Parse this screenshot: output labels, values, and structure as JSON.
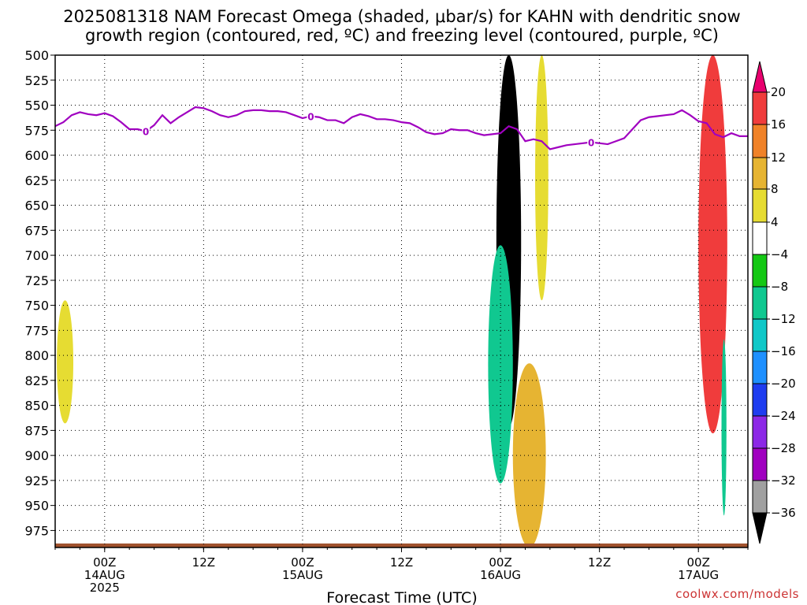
{
  "title": {
    "line1": "2025081318 NAM Forecast Omega (shaded, μbar/s) for KAHN with dendritic snow",
    "line2": "growth region (contoured, red, ºC) and freezing level (contoured, purple, ºC)"
  },
  "credit": "coolwx.com/models",
  "chart_data": {
    "type": "heatmap",
    "xlabel": "Forecast Time (UTC)",
    "ylabel": "",
    "x_range_hours": [
      0,
      84
    ],
    "y_range_hpa": [
      500,
      992
    ],
    "y_ticks": [
      500,
      525,
      550,
      575,
      600,
      625,
      650,
      675,
      700,
      725,
      750,
      775,
      800,
      825,
      850,
      875,
      900,
      925,
      950,
      975
    ],
    "x_ticks": [
      {
        "hour": 6,
        "l1": "00Z",
        "l2": "14AUG",
        "l3": "2025"
      },
      {
        "hour": 18,
        "l1": "12Z",
        "l2": "",
        "l3": ""
      },
      {
        "hour": 30,
        "l1": "00Z",
        "l2": "15AUG",
        "l3": ""
      },
      {
        "hour": 42,
        "l1": "12Z",
        "l2": "",
        "l3": ""
      },
      {
        "hour": 54,
        "l1": "00Z",
        "l2": "16AUG",
        "l3": ""
      },
      {
        "hour": 66,
        "l1": "12Z",
        "l2": "",
        "l3": ""
      },
      {
        "hour": 78,
        "l1": "00Z",
        "l2": "17AUG",
        "l3": ""
      }
    ],
    "grid": true,
    "colorbar": {
      "labels": [
        "20",
        "16",
        "12",
        "8",
        "4",
        "−4",
        "−8",
        "−12",
        "−16",
        "−20",
        "−24",
        "−28",
        "−32",
        "−36"
      ],
      "colors": [
        "#e8006e",
        "#f03c3c",
        "#f08228",
        "#e6b432",
        "#e6dc32",
        "#ffffff",
        "#14c814",
        "#10c890",
        "#10c8c8",
        "#1e90ff",
        "#1e3cf0",
        "#8c28e6",
        "#a000c0",
        "#a0a0a0",
        "#000000"
      ]
    },
    "freezing_level": {
      "label": "0",
      "color": "#a000c0",
      "points": [
        [
          0,
          571
        ],
        [
          1,
          567
        ],
        [
          2,
          560
        ],
        [
          3,
          557
        ],
        [
          4,
          559
        ],
        [
          5,
          560
        ],
        [
          6,
          558
        ],
        [
          7,
          561
        ],
        [
          8,
          567
        ],
        [
          9,
          574
        ],
        [
          10,
          574
        ],
        [
          11,
          576
        ],
        [
          12,
          570
        ],
        [
          13,
          560
        ],
        [
          14,
          568
        ],
        [
          15,
          562
        ],
        [
          16,
          557
        ],
        [
          17,
          552
        ],
        [
          18,
          553
        ],
        [
          19,
          556
        ],
        [
          20,
          560
        ],
        [
          21,
          562
        ],
        [
          22,
          560
        ],
        [
          23,
          556
        ],
        [
          24,
          555
        ],
        [
          25,
          555
        ],
        [
          26,
          556
        ],
        [
          27,
          556
        ],
        [
          28,
          557
        ],
        [
          29,
          560
        ],
        [
          30,
          563
        ],
        [
          31,
          561
        ],
        [
          32,
          562
        ],
        [
          33,
          565
        ],
        [
          34,
          565
        ],
        [
          35,
          568
        ],
        [
          36,
          562
        ],
        [
          37,
          559
        ],
        [
          38,
          561
        ],
        [
          39,
          564
        ],
        [
          40,
          564
        ],
        [
          41,
          565
        ],
        [
          42,
          567
        ],
        [
          43,
          568
        ],
        [
          44,
          572
        ],
        [
          45,
          577
        ],
        [
          46,
          579
        ],
        [
          47,
          578
        ],
        [
          48,
          574
        ],
        [
          49,
          575
        ],
        [
          50,
          575
        ],
        [
          51,
          578
        ],
        [
          52,
          580
        ],
        [
          53,
          579
        ],
        [
          54,
          578
        ],
        [
          55,
          571
        ],
        [
          56,
          574
        ],
        [
          57,
          586
        ],
        [
          58,
          584
        ],
        [
          59,
          586
        ],
        [
          60,
          594
        ],
        [
          61,
          592
        ],
        [
          62,
          590
        ],
        [
          63,
          589
        ],
        [
          64,
          588
        ],
        [
          65,
          587
        ],
        [
          66,
          588
        ],
        [
          67,
          589
        ],
        [
          68,
          586
        ],
        [
          69,
          583
        ],
        [
          70,
          574
        ],
        [
          71,
          565
        ],
        [
          72,
          562
        ],
        [
          73,
          561
        ],
        [
          74,
          560
        ],
        [
          75,
          559
        ],
        [
          76,
          555
        ],
        [
          77,
          560
        ],
        [
          78,
          566
        ],
        [
          79,
          568
        ],
        [
          80,
          579
        ],
        [
          81,
          582
        ],
        [
          82,
          578
        ],
        [
          83,
          581
        ],
        [
          84,
          581
        ]
      ]
    },
    "omega_regions": [
      {
        "name": "early-low-level-rise",
        "value": 5,
        "x": [
          0.2,
          2.2
        ],
        "y": [
          745,
          868
        ]
      },
      {
        "name": "main-updraft-core",
        "value": -40,
        "x": [
          53.5,
          56.5
        ],
        "y": [
          500,
          872
        ]
      },
      {
        "name": "lower-updraft-flank",
        "value": -10,
        "x": [
          52.5,
          55.5
        ],
        "y": [
          690,
          928
        ]
      },
      {
        "name": "post-front-subsidence-upper",
        "value": 6,
        "x": [
          58.2,
          59.8
        ],
        "y": [
          500,
          745
        ]
      },
      {
        "name": "post-front-subsidence-lower",
        "value": 9,
        "x": [
          55.5,
          59.5
        ],
        "y": [
          808,
          992
        ]
      },
      {
        "name": "late-subsidence-column",
        "value": 18,
        "x": [
          78,
          81.5
        ],
        "y": [
          500,
          878
        ]
      },
      {
        "name": "late-low-level-rise",
        "value": -8,
        "x": [
          80.8,
          81.4
        ],
        "y": [
          784,
          960
        ]
      }
    ],
    "ground": {
      "color": "#a0522d",
      "top_hpa": 988
    }
  }
}
